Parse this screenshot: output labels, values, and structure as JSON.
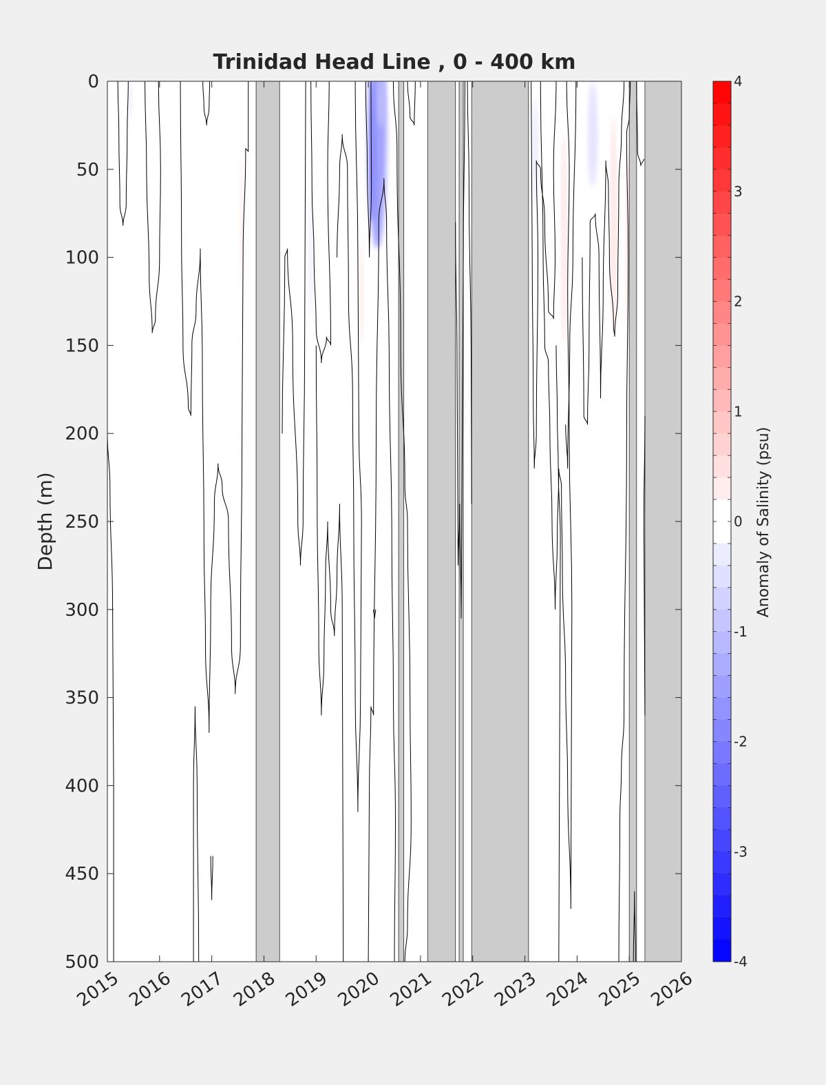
{
  "chart_data": {
    "type": "heatmap",
    "title": "Trinidad Head Line , 0 - 400 km",
    "ylabel": "Depth (m)",
    "colorbar_label": "Anomaly of Salinity (psu)",
    "x_ticks": [
      "2015",
      "2016",
      "2017",
      "2018",
      "2019",
      "2020",
      "2021",
      "2022",
      "2023",
      "2024",
      "2025",
      "2026"
    ],
    "xlim": [
      2015,
      2026
    ],
    "y_ticks": [
      "0",
      "50",
      "100",
      "150",
      "200",
      "250",
      "300",
      "350",
      "400",
      "450",
      "500"
    ],
    "ylim": [
      0,
      500
    ],
    "y_reversed": true,
    "colorbar_ticks": [
      "-4",
      "-3",
      "-2",
      "-1",
      "0",
      "1",
      "2",
      "3",
      "4"
    ],
    "clim": [
      -4,
      4
    ],
    "color_steps": 40,
    "colors": {
      "negative": "#0000ff",
      "positive": "#ff0000",
      "zero": "#ffffff",
      "no_data": "#cccccc",
      "contour": "#000000",
      "background": "#f0f0f0"
    },
    "no_data_periods": [
      [
        2017.85,
        2018.3
      ],
      [
        2020.58,
        2020.68
      ],
      [
        2021.14,
        2021.67
      ],
      [
        2021.74,
        2021.82
      ],
      [
        2021.98,
        2023.07
      ],
      [
        2025.0,
        2025.14
      ],
      [
        2025.3,
        2026.0
      ]
    ],
    "anomaly_patches": [
      {
        "x": 2020.1,
        "depth": 40,
        "sx": 0.06,
        "sd": 40,
        "value": -3.8
      },
      {
        "x": 2020.17,
        "depth": 30,
        "sx": 0.18,
        "sd": 65,
        "value": -1.6
      },
      {
        "x": 2020.25,
        "depth": 12,
        "sx": 0.08,
        "sd": 15,
        "value": -1.0
      },
      {
        "x": 2021.79,
        "depth": 10,
        "sx": 0.02,
        "sd": 20,
        "value": -1.0
      },
      {
        "x": 2017.58,
        "depth": 80,
        "sx": 0.04,
        "sd": 40,
        "value": 0.3
      },
      {
        "x": 2018.9,
        "depth": 100,
        "sx": 0.04,
        "sd": 35,
        "value": -0.3
      },
      {
        "x": 2019.87,
        "depth": 120,
        "sx": 0.04,
        "sd": 30,
        "value": 0.4
      },
      {
        "x": 2023.2,
        "depth": 40,
        "sx": 0.05,
        "sd": 30,
        "value": -0.4
      },
      {
        "x": 2023.75,
        "depth": 90,
        "sx": 0.05,
        "sd": 60,
        "value": 0.5
      },
      {
        "x": 2024.3,
        "depth": 30,
        "sx": 0.09,
        "sd": 30,
        "value": -0.5
      },
      {
        "x": 2024.7,
        "depth": 80,
        "sx": 0.05,
        "sd": 60,
        "value": 0.6
      },
      {
        "x": 2024.97,
        "depth": 90,
        "sx": 0.03,
        "sd": 50,
        "value": 0.7
      },
      {
        "x": 2025.06,
        "depth": 40,
        "sx": 0.03,
        "sd": 35,
        "value": -0.6
      },
      {
        "x": 2015.45,
        "depth": 10,
        "sx": 0.03,
        "sd": 12,
        "value": -0.4
      }
    ],
    "contours_zero_psu": [
      [
        [
          2015.2,
          0
        ],
        [
          2015.22,
          30
        ],
        [
          2015.24,
          70
        ],
        [
          2015.3,
          82
        ],
        [
          2015.36,
          70
        ],
        [
          2015.38,
          30
        ],
        [
          2015.4,
          0
        ]
      ],
      [
        [
          2015.72,
          0
        ],
        [
          2015.75,
          50
        ],
        [
          2015.8,
          110
        ],
        [
          2015.86,
          143
        ],
        [
          2015.92,
          135
        ],
        [
          2016.0,
          100
        ],
        [
          2016.02,
          50
        ],
        [
          2015.98,
          0
        ]
      ],
      [
        [
          2016.4,
          0
        ],
        [
          2016.42,
          90
        ],
        [
          2016.45,
          150
        ],
        [
          2016.55,
          185
        ],
        [
          2016.6,
          190
        ],
        [
          2016.62,
          150
        ],
        [
          2016.7,
          130
        ],
        [
          2016.78,
          95
        ],
        [
          2016.82,
          160
        ],
        [
          2016.85,
          260
        ],
        [
          2016.88,
          320
        ],
        [
          2016.95,
          370
        ],
        [
          2016.98,
          300
        ],
        [
          2017.05,
          240
        ],
        [
          2017.12,
          217
        ],
        [
          2017.2,
          230
        ],
        [
          2017.32,
          250
        ],
        [
          2017.38,
          320
        ],
        [
          2017.45,
          348
        ],
        [
          2017.55,
          320
        ],
        [
          2017.58,
          200
        ],
        [
          2017.6,
          100
        ],
        [
          2017.65,
          38
        ],
        [
          2017.7,
          40
        ],
        [
          2017.7,
          0
        ]
      ],
      [
        [
          2016.83,
          0
        ],
        [
          2016.85,
          15
        ],
        [
          2016.9,
          25
        ],
        [
          2016.95,
          15
        ],
        [
          2016.96,
          0
        ]
      ],
      [
        [
          2016.65,
          500
        ],
        [
          2016.65,
          400
        ],
        [
          2016.68,
          355
        ],
        [
          2016.72,
          400
        ],
        [
          2016.75,
          500
        ]
      ],
      [
        [
          2016.98,
          440
        ],
        [
          2017.0,
          465
        ],
        [
          2017.02,
          440
        ]
      ],
      [
        [
          2018.35,
          200
        ],
        [
          2018.4,
          100
        ],
        [
          2018.45,
          95
        ],
        [
          2018.55,
          150
        ],
        [
          2018.65,
          250
        ],
        [
          2018.7,
          275
        ],
        [
          2018.75,
          250
        ],
        [
          2018.78,
          150
        ],
        [
          2018.8,
          0
        ]
      ],
      [
        [
          2018.9,
          0
        ],
        [
          2018.92,
          60
        ],
        [
          2018.96,
          100
        ],
        [
          2019.0,
          140
        ],
        [
          2019.1,
          160
        ],
        [
          2019.2,
          145
        ],
        [
          2019.28,
          150
        ],
        [
          2019.22,
          50
        ],
        [
          2019.25,
          0
        ]
      ],
      [
        [
          2019.0,
          150
        ],
        [
          2019.02,
          240
        ],
        [
          2019.05,
          320
        ],
        [
          2019.1,
          360
        ],
        [
          2019.15,
          330
        ],
        [
          2019.18,
          280
        ],
        [
          2019.22,
          250
        ],
        [
          2019.28,
          300
        ],
        [
          2019.35,
          315
        ],
        [
          2019.4,
          280
        ],
        [
          2019.45,
          240
        ],
        [
          2019.5,
          300
        ],
        [
          2019.52,
          500
        ]
      ],
      [
        [
          2019.4,
          100
        ],
        [
          2019.45,
          50
        ],
        [
          2019.5,
          30
        ],
        [
          2019.6,
          50
        ],
        [
          2019.62,
          120
        ],
        [
          2019.7,
          180
        ],
        [
          2019.72,
          250
        ],
        [
          2019.75,
          350
        ],
        [
          2019.8,
          415
        ],
        [
          2019.85,
          350
        ],
        [
          2019.87,
          250
        ],
        [
          2019.82,
          200
        ],
        [
          2019.8,
          100
        ],
        [
          2019.75,
          0
        ]
      ],
      [
        [
          2019.95,
          0
        ],
        [
          2019.98,
          50
        ],
        [
          2020.02,
          100
        ],
        [
          2020.06,
          60
        ],
        [
          2020.05,
          0
        ]
      ],
      [
        [
          2020.0,
          500
        ],
        [
          2020.02,
          400
        ],
        [
          2020.05,
          355
        ],
        [
          2020.1,
          360
        ],
        [
          2020.15,
          200
        ],
        [
          2020.2,
          80
        ],
        [
          2020.3,
          55
        ],
        [
          2020.35,
          80
        ],
        [
          2020.4,
          160
        ],
        [
          2020.45,
          260
        ],
        [
          2020.48,
          350
        ],
        [
          2020.52,
          420
        ],
        [
          2020.5,
          500
        ]
      ],
      [
        [
          2020.1,
          300
        ],
        [
          2020.12,
          305
        ],
        [
          2020.14,
          300
        ]
      ],
      [
        [
          2020.48,
          0
        ],
        [
          2020.55,
          40
        ],
        [
          2020.62,
          150
        ],
        [
          2020.7,
          230
        ],
        [
          2020.75,
          250
        ],
        [
          2020.8,
          350
        ],
        [
          2020.82,
          420
        ],
        [
          2020.75,
          480
        ],
        [
          2020.7,
          500
        ]
      ],
      [
        [
          2020.75,
          0
        ],
        [
          2020.8,
          20
        ],
        [
          2020.88,
          25
        ],
        [
          2020.9,
          0
        ]
      ],
      [
        [
          2021.67,
          80
        ],
        [
          2021.7,
          160
        ],
        [
          2021.72,
          275
        ],
        [
          2021.75,
          240
        ],
        [
          2021.78,
          305
        ],
        [
          2021.8,
          200
        ],
        [
          2021.82,
          100
        ],
        [
          2021.85,
          0
        ]
      ],
      [
        [
          2021.9,
          0
        ],
        [
          2021.93,
          60
        ],
        [
          2021.97,
          160
        ],
        [
          2021.98,
          240
        ]
      ],
      [
        [
          2023.12,
          0
        ],
        [
          2023.14,
          100
        ],
        [
          2023.16,
          180
        ],
        [
          2023.18,
          220
        ],
        [
          2023.22,
          200
        ],
        [
          2023.25,
          100
        ],
        [
          2023.22,
          45
        ],
        [
          2023.3,
          50
        ],
        [
          2023.38,
          80
        ],
        [
          2023.45,
          130
        ],
        [
          2023.55,
          135
        ],
        [
          2023.58,
          100
        ],
        [
          2023.55,
          50
        ],
        [
          2023.6,
          0
        ]
      ],
      [
        [
          2023.3,
          0
        ],
        [
          2023.35,
          100
        ],
        [
          2023.38,
          150
        ],
        [
          2023.45,
          160
        ],
        [
          2023.48,
          200
        ],
        [
          2023.52,
          250
        ],
        [
          2023.58,
          300
        ],
        [
          2023.62,
          260
        ],
        [
          2023.65,
          220
        ],
        [
          2023.7,
          230
        ],
        [
          2023.72,
          280
        ],
        [
          2023.78,
          340
        ],
        [
          2023.82,
          400
        ],
        [
          2023.88,
          470
        ],
        [
          2023.9,
          300
        ],
        [
          2023.85,
          200
        ],
        [
          2023.82,
          120
        ],
        [
          2023.85,
          50
        ],
        [
          2023.8,
          0
        ]
      ],
      [
        [
          2023.6,
          150
        ],
        [
          2023.62,
          190
        ],
        [
          2023.64,
          220
        ],
        [
          2023.68,
          260
        ],
        [
          2023.65,
          500
        ]
      ],
      [
        [
          2023.78,
          195
        ],
        [
          2023.82,
          220
        ],
        [
          2023.86,
          150
        ],
        [
          2023.92,
          100
        ],
        [
          2023.98,
          0
        ]
      ],
      [
        [
          2024.1,
          100
        ],
        [
          2024.13,
          190
        ],
        [
          2024.2,
          195
        ],
        [
          2024.23,
          150
        ],
        [
          2024.25,
          80
        ],
        [
          2024.35,
          75
        ],
        [
          2024.42,
          100
        ],
        [
          2024.45,
          180
        ],
        [
          2024.5,
          120
        ],
        [
          2024.55,
          45
        ],
        [
          2024.6,
          60
        ],
        [
          2024.62,
          100
        ],
        [
          2024.7,
          140
        ],
        [
          2024.72,
          145
        ],
        [
          2024.78,
          120
        ],
        [
          2024.8,
          60
        ],
        [
          2024.85,
          30
        ],
        [
          2024.9,
          0
        ]
      ],
      [
        [
          2024.8,
          500
        ],
        [
          2024.82,
          420
        ],
        [
          2024.85,
          390
        ],
        [
          2024.9,
          360
        ],
        [
          2024.95,
          200
        ],
        [
          2024.98,
          100
        ],
        [
          2024.95,
          30
        ],
        [
          2025.0,
          20
        ],
        [
          2025.02,
          0
        ]
      ],
      [
        [
          2025.08,
          500
        ],
        [
          2025.1,
          460
        ],
        [
          2025.12,
          500
        ]
      ],
      [
        [
          2025.14,
          0
        ],
        [
          2025.16,
          40
        ],
        [
          2025.22,
          48
        ],
        [
          2025.28,
          44
        ]
      ],
      [
        [
          2025.3,
          190
        ],
        [
          2025.28,
          250
        ],
        [
          2025.3,
          360
        ]
      ],
      [
        [
          2015.0,
          200
        ],
        [
          2015.05,
          230
        ],
        [
          2015.1,
          300
        ],
        [
          2015.12,
          400
        ],
        [
          2015.12,
          500
        ]
      ]
    ]
  }
}
